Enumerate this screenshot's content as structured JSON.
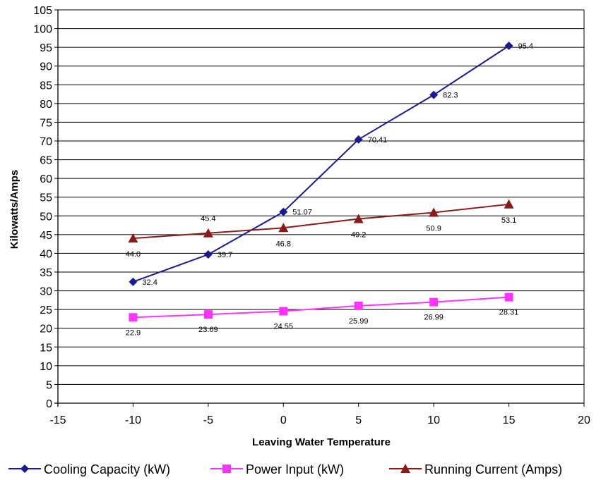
{
  "chart_data": {
    "type": "line",
    "title": "",
    "xlabel": "Leaving Water Temperature",
    "ylabel": "Kilowatts/Amps",
    "xlim": [
      -15,
      20
    ],
    "ylim": [
      0,
      105
    ],
    "xticks": [
      -15,
      -10,
      -5,
      0,
      5,
      10,
      15,
      20
    ],
    "yticks": [
      0,
      5,
      10,
      15,
      20,
      25,
      30,
      35,
      40,
      45,
      50,
      55,
      60,
      65,
      70,
      75,
      80,
      85,
      90,
      95,
      100,
      105
    ],
    "grid": "horizontal",
    "legend_position": "bottom",
    "x": [
      -10,
      -5,
      0,
      5,
      10,
      15
    ],
    "series": [
      {
        "name": "Cooling Capacity (kW)",
        "color": "#1a1a8c",
        "marker": "diamond",
        "values": [
          32.4,
          39.7,
          51.07,
          70.41,
          82.3,
          95.4
        ],
        "labels": [
          "32.4",
          "39.7",
          "51.07",
          "70.41",
          "82.3",
          "95.4"
        ],
        "label_position": "right"
      },
      {
        "name": "Power Input (kW)",
        "color": "#ff33ff",
        "marker": "square",
        "values": [
          22.9,
          23.69,
          24.55,
          25.99,
          26.99,
          28.31
        ],
        "labels": [
          "22.9",
          "23.69",
          "24.55",
          "25.99",
          "26.99",
          "28.31"
        ],
        "label_position": "below"
      },
      {
        "name": "Running Current (Amps)",
        "color": "#8b1a1a",
        "marker": "triangle",
        "values": [
          44.0,
          45.4,
          46.8,
          49.2,
          50.9,
          53.1
        ],
        "labels": [
          "44.0",
          "45.4",
          "46.8",
          "49.2",
          "50.9",
          "53.1"
        ],
        "label_position": "mixed"
      }
    ]
  }
}
